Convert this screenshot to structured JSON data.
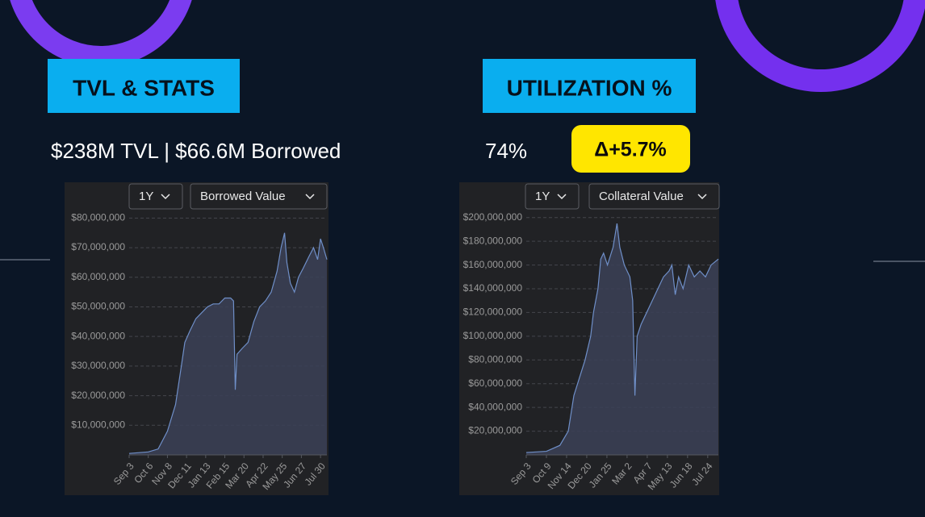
{
  "tvl_title": "TVL & STATS",
  "tvl_stats": "$238M TVL | $66.6M Borrowed",
  "utilization_title": "UTILIZATION %",
  "utilization_value": "74%",
  "utilization_change": "Δ+5.7%",
  "chart_data": [
    {
      "type": "area",
      "title": "Borrowed Value",
      "period": "1Y",
      "color": "#6f8fc8",
      "grid": true,
      "x": [
        0,
        33,
        50,
        66,
        80,
        90,
        96,
        105,
        115,
        125,
        135,
        145,
        155,
        165,
        175,
        180,
        183,
        186,
        195,
        205,
        215,
        225,
        235,
        245,
        255,
        262,
        268,
        272,
        278,
        285,
        292,
        300,
        310,
        318,
        325,
        330,
        335,
        341
      ],
      "values": [
        500000,
        1000000,
        2000000,
        8000000,
        17000000,
        30000000,
        38000000,
        42000000,
        46000000,
        48000000,
        50000000,
        51000000,
        51000000,
        53000000,
        53000000,
        52000000,
        22000000,
        34000000,
        36000000,
        38000000,
        45000000,
        50000000,
        52000000,
        55000000,
        62000000,
        70000000,
        75000000,
        65000000,
        58000000,
        55000000,
        60000000,
        63000000,
        67000000,
        70000000,
        66000000,
        73000000,
        70000000,
        66000000
      ],
      "xlim": [
        0,
        341
      ],
      "xticks": [
        {
          "value": 0,
          "label": "Sep 3"
        },
        {
          "value": 33,
          "label": "Oct 6"
        },
        {
          "value": 66,
          "label": "Nov 8"
        },
        {
          "value": 99,
          "label": "Dec 11"
        },
        {
          "value": 132,
          "label": "Jan 13"
        },
        {
          "value": 165,
          "label": "Feb 15"
        },
        {
          "value": 198,
          "label": "Mar 20"
        },
        {
          "value": 231,
          "label": "Apr 22"
        },
        {
          "value": 264,
          "label": "May 25"
        },
        {
          "value": 297,
          "label": "Jun 27"
        },
        {
          "value": 330,
          "label": "Jul 30"
        }
      ],
      "ylim": [
        0,
        91000000
      ],
      "yticks": [
        {
          "value": 10000000,
          "label": "$10,000,000"
        },
        {
          "value": 20000000,
          "label": "$20,000,000"
        },
        {
          "value": 30000000,
          "label": "$30,000,000"
        },
        {
          "value": 40000000,
          "label": "$40,000,000"
        },
        {
          "value": 50000000,
          "label": "$50,000,000"
        },
        {
          "value": 60000000,
          "label": "$60,000,000"
        },
        {
          "value": 70000000,
          "label": "$70,000,000"
        },
        {
          "value": 80000000,
          "label": "$80,000,000"
        }
      ]
    },
    {
      "type": "area",
      "title": "Collateral Value",
      "period": "1Y",
      "color": "#6f8fc8",
      "grid": true,
      "x": [
        0,
        36,
        60,
        75,
        85,
        95,
        105,
        115,
        120,
        128,
        133,
        138,
        145,
        155,
        162,
        167,
        175,
        185,
        190,
        194,
        198,
        205,
        215,
        225,
        235,
        245,
        255,
        260,
        266,
        272,
        280,
        290,
        300,
        310,
        320,
        330,
        343
      ],
      "values": [
        2000000,
        3000000,
        8000000,
        20000000,
        50000000,
        65000000,
        80000000,
        100000000,
        120000000,
        140000000,
        165000000,
        170000000,
        160000000,
        175000000,
        195000000,
        175000000,
        160000000,
        150000000,
        130000000,
        50000000,
        100000000,
        110000000,
        120000000,
        130000000,
        140000000,
        150000000,
        155000000,
        160000000,
        135000000,
        150000000,
        140000000,
        160000000,
        150000000,
        155000000,
        150000000,
        160000000,
        165000000
      ],
      "xlim": [
        0,
        343
      ],
      "xticks": [
        {
          "value": 0,
          "label": "Sep 3"
        },
        {
          "value": 36,
          "label": "Oct 9"
        },
        {
          "value": 72,
          "label": "Nov 14"
        },
        {
          "value": 108,
          "label": "Dec 20"
        },
        {
          "value": 144,
          "label": "Jan 25"
        },
        {
          "value": 180,
          "label": "Mar 2"
        },
        {
          "value": 216,
          "label": "Apr 7"
        },
        {
          "value": 252,
          "label": "May 13"
        },
        {
          "value": 288,
          "label": "Jun 18"
        },
        {
          "value": 324,
          "label": "Jul 24"
        }
      ],
      "ylim": [
        0,
        227000000
      ],
      "yticks": [
        {
          "value": 20000000,
          "label": "$20,000,000"
        },
        {
          "value": 40000000,
          "label": "$40,000,000"
        },
        {
          "value": 60000000,
          "label": "$60,000,000"
        },
        {
          "value": 80000000,
          "label": "$80,000,000"
        },
        {
          "value": 100000000,
          "label": "$100,000,000"
        },
        {
          "value": 120000000,
          "label": "$120,000,000"
        },
        {
          "value": 140000000,
          "label": "$140,000,000"
        },
        {
          "value": 160000000,
          "label": "$160,000,000"
        },
        {
          "value": 180000000,
          "label": "$180,000,000"
        },
        {
          "value": 200000000,
          "label": "$200,000,000"
        }
      ]
    }
  ]
}
